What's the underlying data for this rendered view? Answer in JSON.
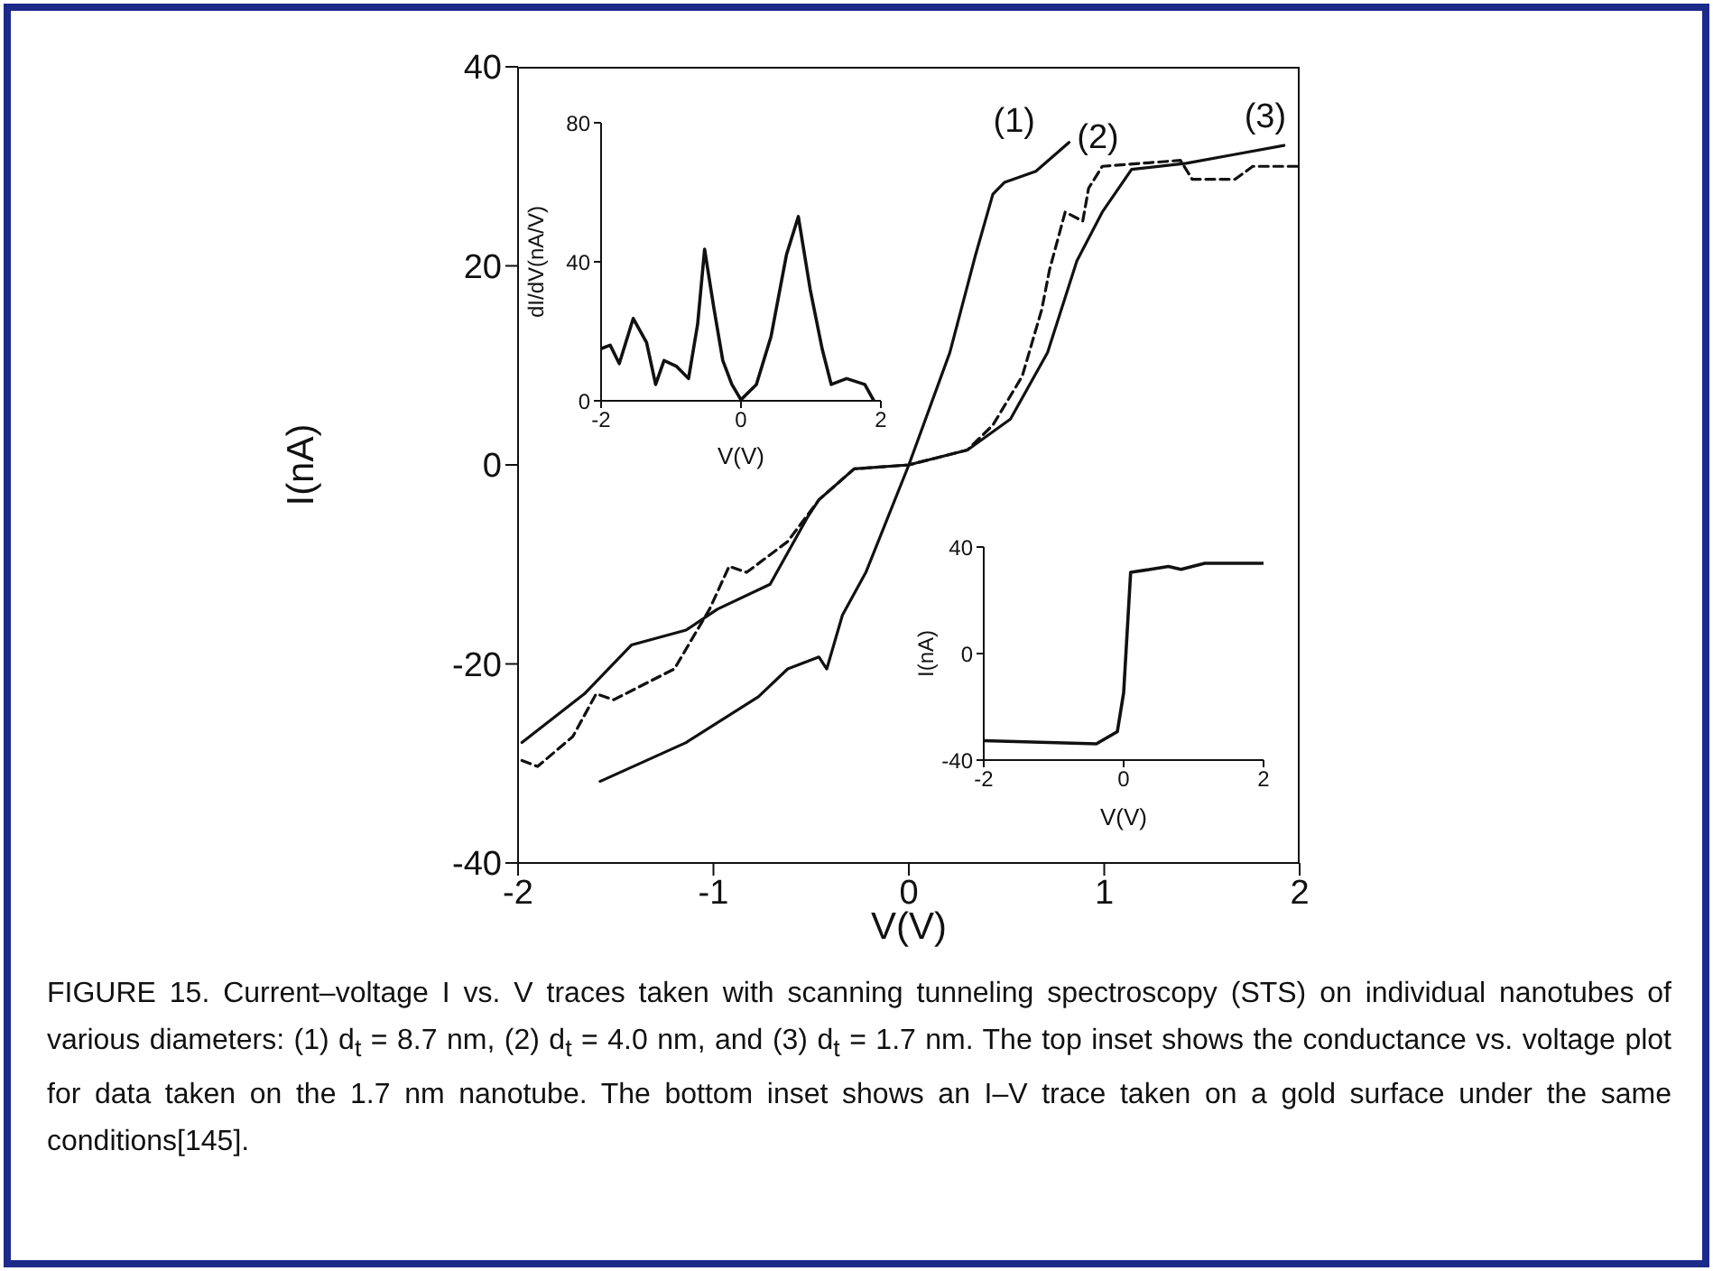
{
  "chart_data": [
    {
      "type": "line",
      "xlabel": "V(V)",
      "ylabel": "I(nA)",
      "xlim": [
        -2,
        2
      ],
      "ylim": [
        -40,
        40
      ],
      "xticks": [
        -2,
        -1,
        0,
        1,
        2
      ],
      "yticks": [
        -40,
        -20,
        0,
        20,
        40
      ],
      "marker": "none",
      "series": [
        {
          "name": "(1)",
          "color": "#111111",
          "line_style": "solid",
          "x": [
            -1.58,
            -1.14,
            -0.77,
            -0.62,
            -0.46,
            -0.42,
            -0.34,
            -0.22,
            0,
            0.21,
            0.34,
            0.43,
            0.49,
            0.65,
            0.82
          ],
          "values": [
            -31.8,
            -27.9,
            -23.3,
            -20.5,
            -19.3,
            -20.5,
            -15.1,
            -10.8,
            0,
            11.3,
            21,
            27.2,
            28.4,
            29.5,
            32.4
          ]
        },
        {
          "name": "(2)",
          "color": "#111111",
          "line_style": "dashed",
          "x": [
            -1.98,
            -1.9,
            -1.72,
            -1.6,
            -1.51,
            -1.2,
            -1.02,
            -0.92,
            -0.83,
            -0.62,
            -0.46,
            -0.28,
            0,
            0.3,
            0.43,
            0.58,
            0.68,
            0.72,
            0.8,
            0.89,
            0.92,
            0.99,
            1.39,
            1.45,
            1.67,
            1.76,
            2
          ],
          "values": [
            -29.7,
            -30.3,
            -27.3,
            -23,
            -23.6,
            -20.5,
            -14.5,
            -10.2,
            -10.8,
            -7.7,
            -3.5,
            -0.4,
            0,
            1.5,
            4,
            8.9,
            15.6,
            19.6,
            25.4,
            24.5,
            27.8,
            30,
            30.6,
            28.7,
            28.7,
            30,
            30
          ]
        },
        {
          "name": "(3)",
          "color": "#111111",
          "line_style": "solid",
          "x": [
            -1.98,
            -1.66,
            -1.42,
            -1.14,
            -0.98,
            -0.71,
            -0.52,
            -0.46,
            -0.28,
            0,
            0.3,
            0.52,
            0.71,
            0.86,
            0.99,
            1.14,
            1.42,
            1.67,
            1.92
          ],
          "values": [
            -27.9,
            -23,
            -18.1,
            -16.6,
            -14.5,
            -12,
            -5.3,
            -3.5,
            -0.4,
            0,
            1.5,
            4.6,
            11.3,
            20.5,
            25.4,
            29.7,
            30.3,
            31.2,
            32.1
          ]
        }
      ],
      "annotations": [
        "FIGURE 15. Current–voltage I vs. V traces taken with scanning tunneling spectroscopy (STS) on individual nanotubes of various diameters: (1) d$_{t}$ = 8.7 nm, (2) d$_{t}$ = 4.0 nm, and (3) d$_{t}$ = 1.7 nm. The top inset shows the conductance vs. voltage plot for data taken on the 1.7 nm nanotube. The bottom inset shows an I–V trace taken on a gold surface under the same conditions[145]."
      ]
    },
    {
      "type": "line",
      "xlabel": "V(V)",
      "ylabel": "dI/dV(nA/V)",
      "xlim": [
        -2,
        2
      ],
      "ylim": [
        0,
        80
      ],
      "xticks": [
        -2,
        0,
        2
      ],
      "yticks": [
        0,
        40,
        80
      ],
      "marker": "none",
      "series": [
        {
          "color": "#111111",
          "line_style": "solid",
          "x": [
            -2,
            -1.87,
            -1.74,
            -1.54,
            -1.35,
            -1.22,
            -1.1,
            -0.92,
            -0.75,
            -0.62,
            -0.52,
            -0.39,
            -0.26,
            -0.13,
            0,
            0.22,
            0.43,
            0.65,
            0.82,
            0.99,
            1.16,
            1.29,
            1.51,
            1.77,
            1.9
          ],
          "values": [
            15,
            16,
            10.7,
            23.7,
            16.8,
            4.7,
            11.6,
            9.9,
            6.4,
            22,
            43.6,
            27,
            11.6,
            4.7,
            0.3,
            4.7,
            18.5,
            42,
            53,
            32,
            15,
            4.7,
            6.4,
            4.7,
            0
          ]
        }
      ]
    },
    {
      "type": "line",
      "xlabel": "V(V)",
      "ylabel": "I(nA)",
      "xlim": [
        -2,
        2
      ],
      "ylim": [
        -40,
        40
      ],
      "xticks": [
        -2,
        0,
        2
      ],
      "yticks": [
        -40,
        0,
        40
      ],
      "marker": "none",
      "series": [
        {
          "color": "#111111",
          "line_style": "solid",
          "x": [
            -2,
            -0.39,
            -0.09,
            0,
            0.1,
            0.38,
            0.64,
            0.82,
            1.16,
            2
          ],
          "values": [
            -32.7,
            -33.9,
            -29.3,
            -14.7,
            30.5,
            31.6,
            32.7,
            31.6,
            33.9,
            33.9
          ]
        }
      ]
    }
  ]
}
